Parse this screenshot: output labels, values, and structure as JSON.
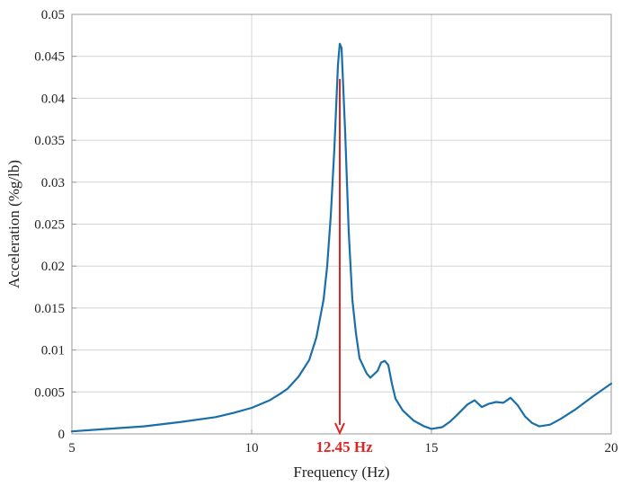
{
  "chart_data": {
    "type": "line",
    "title": "",
    "xlabel": "Frequency (Hz)",
    "ylabel": "Acceleration (%g/lb)",
    "xlim": [
      5,
      20
    ],
    "ylim": [
      0,
      0.05
    ],
    "grid": true,
    "x_ticks": [
      "5",
      "10",
      "15",
      "20"
    ],
    "y_ticks": [
      "0",
      "0.005",
      "0.01",
      "0.015",
      "0.02",
      "0.025",
      "0.03",
      "0.035",
      "0.04",
      "0.045",
      "0.05"
    ],
    "series": [
      {
        "color": "#1a6fa8",
        "x": [
          5.0,
          6.0,
          7.0,
          8.0,
          9.0,
          9.5,
          10.0,
          10.5,
          10.8,
          11.0,
          11.3,
          11.6,
          11.8,
          12.0,
          12.1,
          12.2,
          12.3,
          12.4,
          12.45,
          12.5,
          12.6,
          12.7,
          12.8,
          12.9,
          13.0,
          13.2,
          13.3,
          13.5,
          13.6,
          13.7,
          13.8,
          13.9,
          14.0,
          14.2,
          14.5,
          14.8,
          15.0,
          15.3,
          15.5,
          15.7,
          16.0,
          16.2,
          16.4,
          16.6,
          16.8,
          17.0,
          17.2,
          17.4,
          17.6,
          17.8,
          18.0,
          18.3,
          18.6,
          19.0,
          19.5,
          20.0
        ],
        "y": [
          0.0003,
          0.0006,
          0.0009,
          0.0014,
          0.002,
          0.0025,
          0.0031,
          0.004,
          0.0048,
          0.0054,
          0.0068,
          0.0088,
          0.0115,
          0.016,
          0.02,
          0.026,
          0.034,
          0.044,
          0.0465,
          0.046,
          0.036,
          0.024,
          0.016,
          0.012,
          0.009,
          0.0072,
          0.0067,
          0.0075,
          0.0085,
          0.0087,
          0.0082,
          0.006,
          0.0042,
          0.0028,
          0.0016,
          0.0009,
          0.0006,
          0.0008,
          0.0014,
          0.0022,
          0.0035,
          0.004,
          0.0032,
          0.0036,
          0.0038,
          0.0037,
          0.0043,
          0.0034,
          0.0021,
          0.0013,
          0.0009,
          0.0011,
          0.0018,
          0.0029,
          0.0045,
          0.006
        ]
      }
    ],
    "annotations": [
      {
        "text": "12.45 Hz",
        "color": "#e32222",
        "arrow_x": 12.45,
        "arrow_from_y": 0.0423,
        "arrow_to_y": 0.0
      }
    ]
  }
}
